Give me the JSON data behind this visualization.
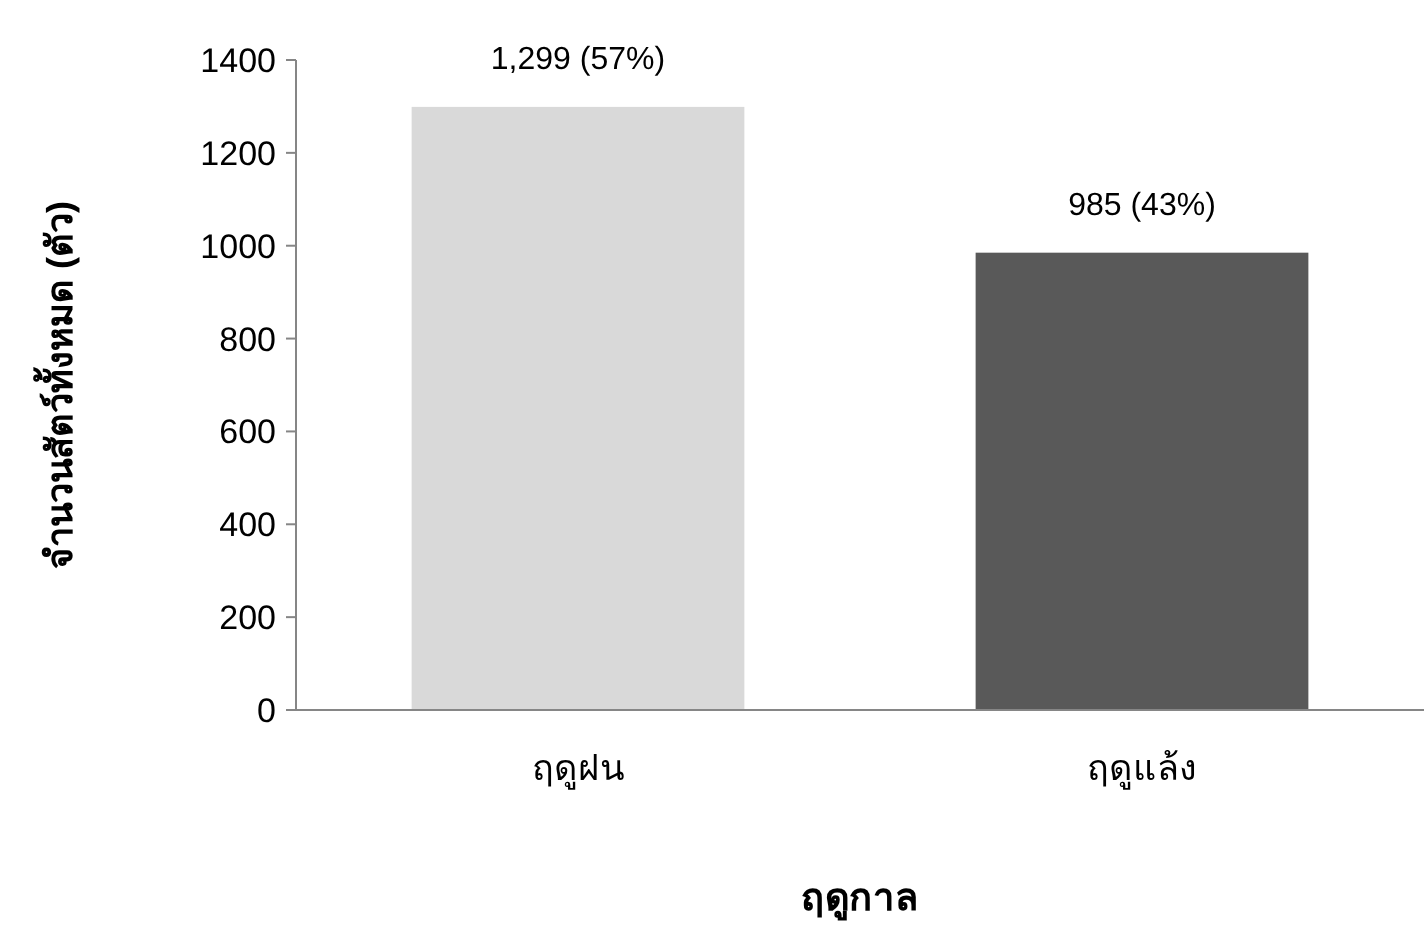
{
  "chart_data": {
    "type": "bar",
    "xlabel": "ฤดูกาล",
    "ylabel": "จำนวนสัตว์ทั้งหมด (ตัว)",
    "categories": [
      "ฤดูฝน",
      "ฤดูแล้ง"
    ],
    "values": [
      1299,
      985
    ],
    "colors": [
      "#d9d9d9",
      "#595959"
    ],
    "value_labels": [
      "1,299 (57%)",
      "985 (43%)"
    ],
    "ylim": [
      0,
      1400
    ],
    "yticks": [
      0,
      200,
      400,
      600,
      800,
      1000,
      1200,
      1400
    ],
    "grid": false
  }
}
